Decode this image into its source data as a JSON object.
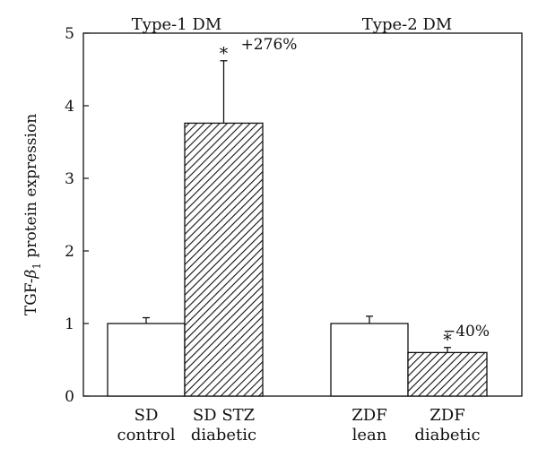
{
  "chart_data": {
    "type": "bar",
    "ylabel_parts": [
      "TGF-",
      "β",
      "1",
      " protein expression"
    ],
    "ylim": [
      0,
      5
    ],
    "yticks": [
      "0",
      "1",
      "2",
      "3",
      "4",
      "5"
    ],
    "groups": [
      {
        "title": "Type-1 DM",
        "bars": [
          {
            "label": [
              "SD",
              "control"
            ],
            "value": 1.0,
            "error": 0.08,
            "fill": "open",
            "significance": "",
            "annotation": ""
          },
          {
            "label": [
              "SD STZ",
              "diabetic"
            ],
            "value": 3.76,
            "error": 0.86,
            "fill": "hatched",
            "significance": "*",
            "annotation": "+276%"
          }
        ]
      },
      {
        "title": "Type-2 DM",
        "bars": [
          {
            "label": [
              "ZDF",
              "lean"
            ],
            "value": 1.0,
            "error": 0.1,
            "fill": "open",
            "significance": "",
            "annotation": ""
          },
          {
            "label": [
              "ZDF",
              "diabetic"
            ],
            "value": 0.6,
            "error": 0.07,
            "fill": "hatched",
            "significance": "*",
            "annotation": "−40%"
          }
        ]
      }
    ],
    "colors": {
      "bar_stroke": "#111111",
      "open_fill": "#ffffff",
      "hatch": "#111111"
    }
  }
}
